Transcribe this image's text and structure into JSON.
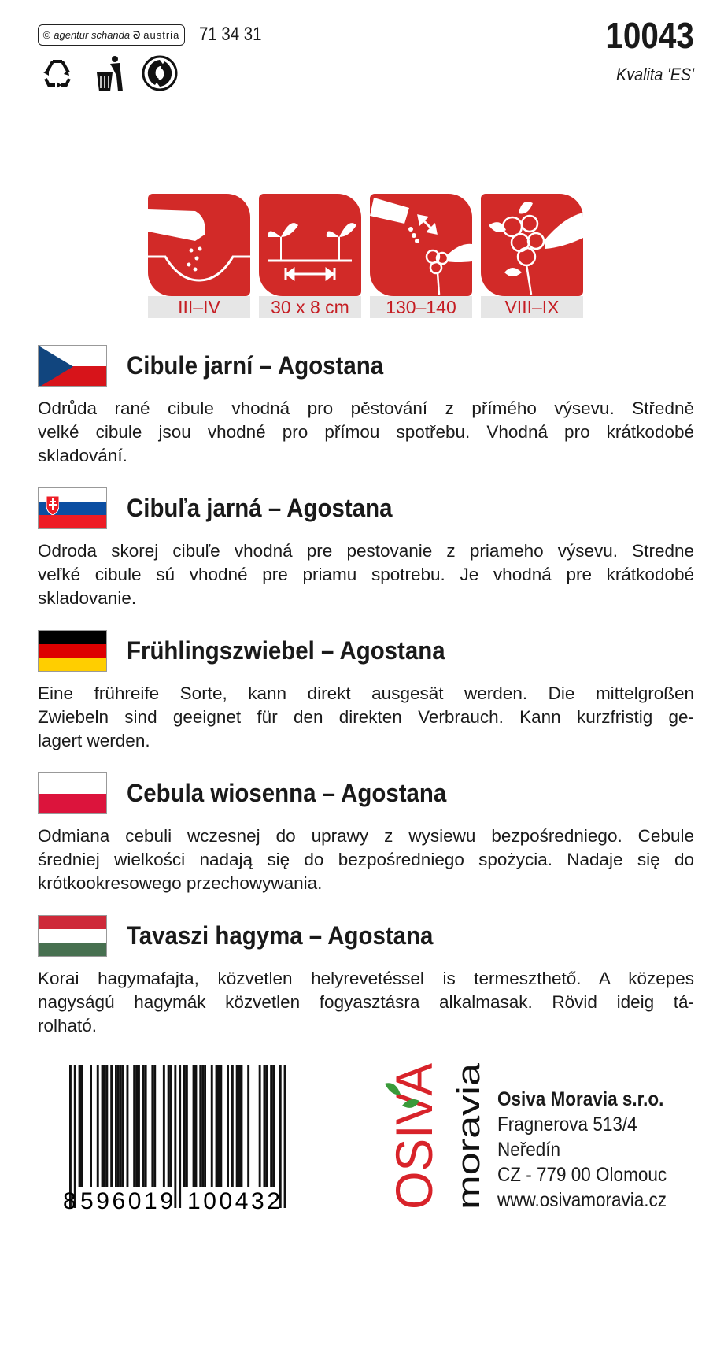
{
  "header": {
    "badge": {
      "copyright": "©",
      "agency": "agentur schanda",
      "country": "austria"
    },
    "code": "71 34 31",
    "product_number": "10043",
    "quality": "Kvalita 'ES'",
    "symbols": [
      "recycle-icon",
      "tidyman-icon",
      "green-dot-icon"
    ]
  },
  "icons": [
    {
      "icon": "sowing-hand-icon",
      "label": "III–IV"
    },
    {
      "icon": "spacing-seedlings-icon",
      "label": "30 x 8 cm"
    },
    {
      "icon": "days-to-harvest-icon",
      "label": "130–140"
    },
    {
      "icon": "harvest-hand-icon",
      "label": "VIII–IX"
    }
  ],
  "colors": {
    "red": "#d22a28",
    "label_bg": "#e6e6e6",
    "label_text": "#c51d23",
    "logo_green": "#3a9a3a"
  },
  "sections": [
    {
      "flag": "cz",
      "title": "Cibule jarní – Agostana",
      "lines": [
        "Odrůda rané cibule vhodná pro pěstování z přímého výsevu. Středně",
        "velké cibule jsou vhodné pro přímou spotřebu. Vhodná pro krátkodobé",
        "skladování."
      ]
    },
    {
      "flag": "sk",
      "title": "Cibuľa jarná – Agostana",
      "lines": [
        "Odroda skorej cibuľe vhodná pre pestovanie z priameho výsevu. Stredne",
        "veľké cibule sú vhodné pre priamu spotrebu. Je vhodná pre krátkodobé",
        "skladovanie."
      ]
    },
    {
      "flag": "de",
      "title": "Frühlingszwiebel – Agostana",
      "lines": [
        "Eine frühreife Sorte, kann direkt ausgesät werden. Die mittelgroßen",
        "Zwiebeln sind geeignet für den direkten Verbrauch. Kann kurzfristig ge-",
        "lagert werden."
      ]
    },
    {
      "flag": "pl",
      "title": "Cebula wiosenna – Agostana",
      "lines": [
        "Odmiana cebuli wczesnej do uprawy z wysiewu bezpośredniego. Cebule",
        "średniej wielkości nadają się do bezpośredniego spożycia. Nadaje się do",
        "krótkookresowego przechowywania."
      ]
    },
    {
      "flag": "hu",
      "title": "Tavaszi hagyma – Agostana",
      "lines": [
        "Korai hagymafajta, közvetlen helyrevetéssel is termeszthető. A közepes",
        "nagyságú hagymák közvetlen fogyasztásra alkalmasak. Rövid ideig tá-",
        "rolható."
      ]
    }
  ],
  "barcode": {
    "digits": "8596019100432",
    "groups": [
      "8",
      "596019",
      "100432"
    ]
  },
  "logo": {
    "brand": "OSIVA",
    "sub": "moravia"
  },
  "company": {
    "name": "Osiva Moravia s.r.o.",
    "street": "Fragnerova 513/4",
    "district": "Neředín",
    "city": "CZ - 779 00 Olomouc",
    "web": "www.osivamoravia.cz"
  }
}
